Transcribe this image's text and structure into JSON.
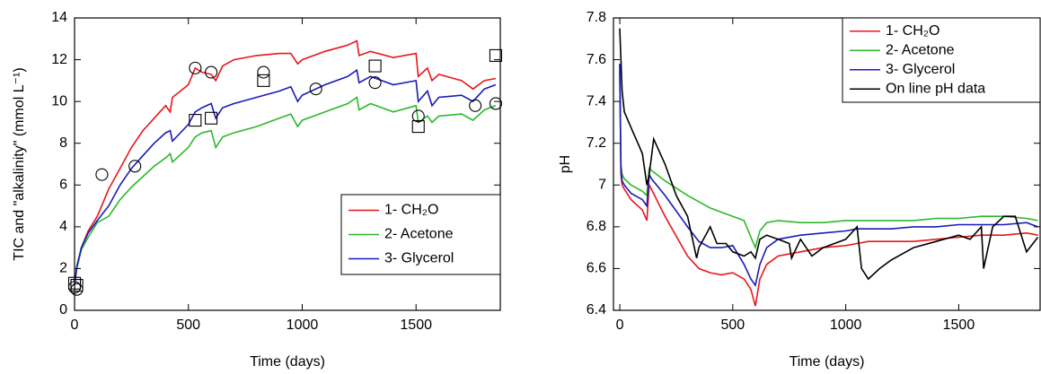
{
  "chart_data": [
    {
      "type": "line",
      "xlabel": "Time (days)",
      "ylabel": "TIC and \"alkalinity\" (mmol L⁻¹)",
      "xlim": [
        0,
        1870
      ],
      "ylim": [
        0,
        14
      ],
      "xticks": [
        0,
        500,
        1000,
        1500
      ],
      "yticks": [
        0,
        2,
        4,
        6,
        8,
        10,
        12,
        14
      ],
      "legend": "lower right",
      "series": [
        {
          "name": "1- CH₂O",
          "color": "#e8161b",
          "x": [
            0,
            10,
            30,
            60,
            100,
            150,
            200,
            250,
            300,
            350,
            400,
            420,
            430,
            500,
            530,
            560,
            600,
            620,
            650,
            700,
            800,
            900,
            950,
            980,
            1000,
            1100,
            1200,
            1240,
            1250,
            1300,
            1400,
            1500,
            1510,
            1550,
            1570,
            1600,
            1700,
            1750,
            1800,
            1850
          ],
          "values": [
            1.2,
            2,
            3,
            3.8,
            4.5,
            5.8,
            6.8,
            7.8,
            8.6,
            9.2,
            9.8,
            9.5,
            10.2,
            10.8,
            11.6,
            11.4,
            11.3,
            11.0,
            11.7,
            12.0,
            12.2,
            12.3,
            12.3,
            11.8,
            12.0,
            12.4,
            12.7,
            12.9,
            12.2,
            12.4,
            12.1,
            12.3,
            11.2,
            11.6,
            11.0,
            11.3,
            11.0,
            10.6,
            11.0,
            11.1
          ]
        },
        {
          "name": "2- Acetone",
          "color": "#2cb82c",
          "x": [
            0,
            10,
            30,
            60,
            100,
            150,
            200,
            250,
            300,
            350,
            400,
            420,
            430,
            500,
            530,
            560,
            600,
            620,
            650,
            700,
            800,
            900,
            950,
            980,
            1000,
            1100,
            1200,
            1240,
            1250,
            1300,
            1400,
            1500,
            1510,
            1550,
            1570,
            1600,
            1700,
            1750,
            1800,
            1850
          ],
          "values": [
            1.2,
            2,
            2.9,
            3.5,
            4.2,
            4.5,
            5.3,
            5.9,
            6.4,
            6.9,
            7.3,
            7.5,
            7.1,
            7.8,
            8.3,
            8.5,
            8.6,
            7.8,
            8.3,
            8.5,
            8.8,
            9.2,
            9.4,
            8.8,
            9.1,
            9.5,
            9.9,
            10.2,
            9.6,
            9.9,
            9.5,
            9.8,
            9.0,
            9.3,
            9.0,
            9.3,
            9.4,
            9.1,
            9.6,
            9.8
          ]
        },
        {
          "name": "3- Glycerol",
          "color": "#1a1ab8",
          "x": [
            0,
            10,
            30,
            60,
            100,
            150,
            200,
            250,
            300,
            350,
            400,
            420,
            430,
            500,
            530,
            560,
            600,
            620,
            650,
            700,
            800,
            900,
            950,
            980,
            1000,
            1100,
            1200,
            1240,
            1250,
            1300,
            1400,
            1500,
            1510,
            1550,
            1570,
            1600,
            1700,
            1750,
            1800,
            1850
          ],
          "values": [
            1.2,
            2.1,
            3,
            3.7,
            4.3,
            5.0,
            6.0,
            6.8,
            7.4,
            8.0,
            8.5,
            8.6,
            8.1,
            8.9,
            9.5,
            9.7,
            9.9,
            9.2,
            9.7,
            9.9,
            10.2,
            10.5,
            10.7,
            10.0,
            10.3,
            10.8,
            11.2,
            11.5,
            10.9,
            11.2,
            10.8,
            11.0,
            10.0,
            10.5,
            9.8,
            10.2,
            10.3,
            10.0,
            10.6,
            10.8
          ]
        }
      ],
      "points": [
        {
          "marker": "circle",
          "color": "#000000",
          "x": [
            0,
            10,
            120,
            265,
            530,
            600,
            830,
            1060,
            1320,
            1510,
            1760,
            1850
          ],
          "values": [
            1.1,
            1.0,
            6.5,
            6.9,
            11.6,
            11.4,
            11.4,
            10.6,
            10.9,
            9.3,
            9.8,
            9.9
          ]
        },
        {
          "marker": "square",
          "color": "#000000",
          "x": [
            0,
            10,
            530,
            600,
            830,
            1320,
            1510,
            1850
          ],
          "values": [
            1.3,
            1.2,
            9.1,
            9.2,
            11.0,
            11.7,
            8.8,
            12.2
          ]
        }
      ]
    },
    {
      "type": "line",
      "xlabel": "Time (days)",
      "ylabel": "pH",
      "xlim": [
        -28,
        1860
      ],
      "ylim": [
        6.4,
        7.8
      ],
      "xticks": [
        0,
        500,
        1000,
        1500
      ],
      "yticks": [
        6.4,
        6.6,
        6.8,
        7,
        7.2,
        7.4,
        7.6,
        7.8
      ],
      "legend": "upper right",
      "series": [
        {
          "name": "1- CH₂O",
          "color": "#e8161b",
          "x": [
            0,
            5,
            10,
            20,
            50,
            100,
            120,
            130,
            140,
            200,
            300,
            350,
            400,
            450,
            500,
            550,
            580,
            600,
            620,
            650,
            700,
            800,
            900,
            1000,
            1050,
            1100,
            1200,
            1300,
            1400,
            1500,
            1600,
            1700,
            1800,
            1850
          ],
          "values": [
            7.55,
            7.05,
            7.0,
            6.98,
            6.93,
            6.88,
            6.83,
            7.0,
            6.98,
            6.85,
            6.66,
            6.6,
            6.58,
            6.57,
            6.58,
            6.55,
            6.5,
            6.42,
            6.55,
            6.62,
            6.66,
            6.68,
            6.7,
            6.71,
            6.72,
            6.73,
            6.73,
            6.73,
            6.74,
            6.75,
            6.76,
            6.76,
            6.77,
            6.76
          ]
        },
        {
          "name": "2- Acetone",
          "color": "#2cb82c",
          "x": [
            0,
            5,
            10,
            20,
            50,
            100,
            120,
            130,
            140,
            200,
            300,
            350,
            400,
            450,
            500,
            550,
            580,
            600,
            620,
            650,
            700,
            800,
            900,
            1000,
            1050,
            1100,
            1200,
            1300,
            1400,
            1500,
            1600,
            1700,
            1800,
            1850
          ],
          "values": [
            7.58,
            7.1,
            7.05,
            7.03,
            7.0,
            6.97,
            6.95,
            7.08,
            7.07,
            7.02,
            6.95,
            6.92,
            6.89,
            6.87,
            6.85,
            6.83,
            6.75,
            6.7,
            6.78,
            6.82,
            6.83,
            6.82,
            6.82,
            6.83,
            6.83,
            6.83,
            6.83,
            6.83,
            6.84,
            6.84,
            6.85,
            6.85,
            6.84,
            6.83
          ]
        },
        {
          "name": "3- Glycerol",
          "color": "#1a1ab8",
          "x": [
            0,
            5,
            10,
            20,
            50,
            100,
            120,
            130,
            140,
            200,
            300,
            350,
            400,
            450,
            500,
            550,
            580,
            600,
            620,
            650,
            700,
            800,
            900,
            1000,
            1050,
            1100,
            1200,
            1300,
            1400,
            1500,
            1600,
            1700,
            1800,
            1850
          ],
          "values": [
            7.58,
            7.08,
            7.02,
            7.0,
            6.96,
            6.93,
            6.9,
            7.05,
            7.03,
            6.95,
            6.8,
            6.73,
            6.7,
            6.7,
            6.71,
            6.62,
            6.55,
            6.52,
            6.62,
            6.7,
            6.74,
            6.76,
            6.77,
            6.78,
            6.79,
            6.79,
            6.79,
            6.8,
            6.8,
            6.81,
            6.81,
            6.81,
            6.82,
            6.8
          ]
        },
        {
          "name": "On line pH data",
          "color": "#000000",
          "x": [
            0,
            10,
            20,
            40,
            60,
            80,
            100,
            120,
            130,
            150,
            200,
            250,
            300,
            340,
            350,
            400,
            430,
            470,
            500,
            550,
            580,
            600,
            620,
            650,
            700,
            750,
            760,
            800,
            850,
            900,
            950,
            1000,
            1050,
            1070,
            1100,
            1150,
            1200,
            1300,
            1400,
            1500,
            1550,
            1600,
            1610,
            1650,
            1700,
            1750,
            1800,
            1850
          ],
          "values": [
            7.75,
            7.45,
            7.35,
            7.3,
            7.25,
            7.2,
            7.15,
            7.0,
            7.05,
            7.22,
            7.1,
            6.95,
            6.85,
            6.65,
            6.7,
            6.8,
            6.72,
            6.72,
            6.68,
            6.66,
            6.68,
            6.65,
            6.74,
            6.76,
            6.74,
            6.72,
            6.65,
            6.74,
            6.66,
            6.7,
            6.72,
            6.74,
            6.8,
            6.6,
            6.55,
            6.6,
            6.64,
            6.7,
            6.73,
            6.76,
            6.74,
            6.8,
            6.6,
            6.8,
            6.85,
            6.85,
            6.68,
            6.75
          ]
        }
      ]
    }
  ]
}
